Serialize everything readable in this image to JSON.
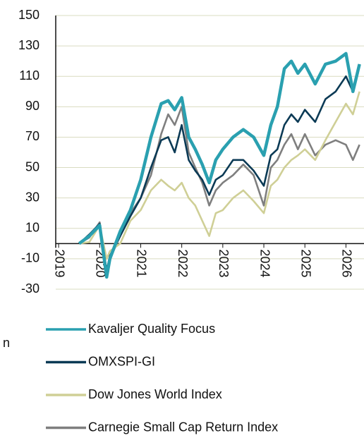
{
  "chart_data": {
    "type": "line",
    "x": [
      2019.5,
      2019.75,
      2020.0,
      2020.17,
      2020.25,
      2020.5,
      2020.75,
      2021.0,
      2021.25,
      2021.5,
      2021.67,
      2021.83,
      2022.0,
      2022.17,
      2022.33,
      2022.5,
      2022.67,
      2022.83,
      2023.0,
      2023.25,
      2023.5,
      2023.75,
      2024.0,
      2024.17,
      2024.33,
      2024.5,
      2024.67,
      2024.83,
      2025.0,
      2025.25,
      2025.5,
      2025.75,
      2026.0,
      2026.17,
      2026.33
    ],
    "series": [
      {
        "name": "Kavaljer Quality Focus",
        "color": "#2aa0b0",
        "values": [
          0,
          5,
          12,
          -22,
          -10,
          8,
          22,
          42,
          70,
          92,
          94,
          88,
          96,
          70,
          62,
          52,
          40,
          55,
          62,
          70,
          75,
          70,
          58,
          78,
          90,
          115,
          120,
          112,
          118,
          105,
          118,
          120,
          125,
          100,
          118
        ]
      },
      {
        "name": "OMXSPI-GI",
        "color": "#0b3a55",
        "values": [
          0,
          6,
          13,
          -18,
          -8,
          5,
          18,
          30,
          50,
          68,
          70,
          60,
          78,
          55,
          48,
          42,
          32,
          42,
          45,
          55,
          55,
          48,
          38,
          58,
          62,
          78,
          85,
          80,
          88,
          80,
          95,
          100,
          110,
          100,
          118
        ]
      },
      {
        "name": "Dow Jones World Index",
        "color": "#cfcf96",
        "values": [
          0,
          1,
          12,
          -10,
          -5,
          0,
          15,
          22,
          35,
          42,
          38,
          35,
          40,
          30,
          25,
          15,
          5,
          20,
          22,
          30,
          35,
          28,
          20,
          38,
          42,
          50,
          55,
          58,
          62,
          55,
          68,
          80,
          92,
          85,
          100
        ]
      },
      {
        "name": "Carnegie Small Cap Return Index",
        "color": "#7f7f7f",
        "values": [
          0,
          4,
          14,
          -20,
          -10,
          5,
          20,
          30,
          45,
          72,
          85,
          78,
          90,
          60,
          50,
          40,
          25,
          35,
          40,
          45,
          52,
          45,
          25,
          50,
          55,
          65,
          72,
          62,
          72,
          58,
          65,
          68,
          65,
          55,
          65
        ]
      }
    ],
    "xlim": [
      2018.93,
      2026.44
    ],
    "xticks": [
      2019,
      2020,
      2021,
      2022,
      2023,
      2024,
      2025,
      2026
    ],
    "ylim": [
      -30,
      150
    ],
    "yticks": [
      -30,
      -10,
      10,
      30,
      50,
      70,
      90,
      110,
      130,
      150
    ],
    "grid": true,
    "clipped_text": "n"
  }
}
